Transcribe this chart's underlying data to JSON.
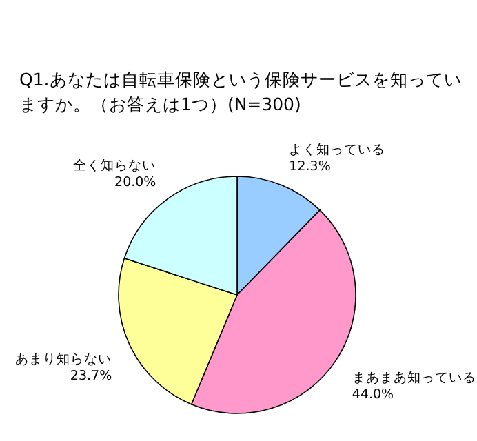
{
  "chart_data": {
    "type": "pie",
    "title": "Q1.あなたは自転車保険という保険サービスを知っていますか。（お答えは1つ）(N=300)",
    "categories": [
      "よく知っている",
      "まあまあ知っている",
      "あまり知らない",
      "全く知らない"
    ],
    "values": [
      12.3,
      44.0,
      23.7,
      20.0
    ],
    "value_labels": [
      "12.3%",
      "44.0%",
      "23.7%",
      "20.0%"
    ],
    "colors": [
      "#99ccff",
      "#ff99cc",
      "#ffff99",
      "#ccffff"
    ]
  }
}
